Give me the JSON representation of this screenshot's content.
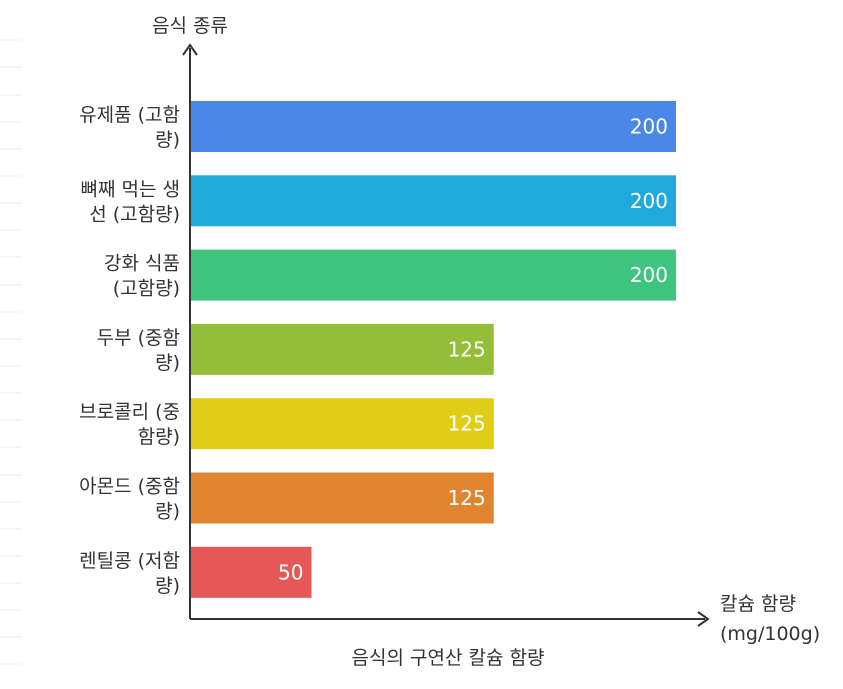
{
  "chart_data": {
    "type": "bar",
    "orientation": "horizontal",
    "title": "음식의 구연산 칼슘 함량",
    "ylabel": "음식 종류",
    "xlabel": "칼슘 함량 (mg/100g)",
    "categories": [
      "유제품 (고함량)",
      "뼈째 먹는 생선 (고함량)",
      "강화 식품 (고함량)",
      "두부 (중함량)",
      "브로콜리 (중함량)",
      "아몬드 (중함량)",
      "렌틸콩 (저함량)"
    ],
    "category_lines": [
      [
        "유제품 (고함",
        "량)"
      ],
      [
        "뼈째 먹는 생",
        "선 (고함량)"
      ],
      [
        "강화 식품",
        "(고함량)"
      ],
      [
        "두부 (중함",
        "량)"
      ],
      [
        "브로콜리 (중",
        "함량)"
      ],
      [
        "아몬드 (중함",
        "량)"
      ],
      [
        "렌틸콩 (저함",
        "량)"
      ]
    ],
    "values": [
      200,
      200,
      200,
      125,
      125,
      125,
      50
    ],
    "value_labels": [
      "200",
      "200",
      "200",
      "125",
      "125",
      "125",
      "50"
    ],
    "colors": [
      "#4b87e6",
      "#20aadb",
      "#3ec680",
      "#94be38",
      "#dfcd16",
      "#e08430",
      "#e65858"
    ],
    "xlim": [
      0,
      200
    ],
    "grid": false,
    "legend": "none",
    "ylabel_position": "top of axis",
    "xlabel_position": "right end of axis",
    "title_position": "bottom"
  }
}
